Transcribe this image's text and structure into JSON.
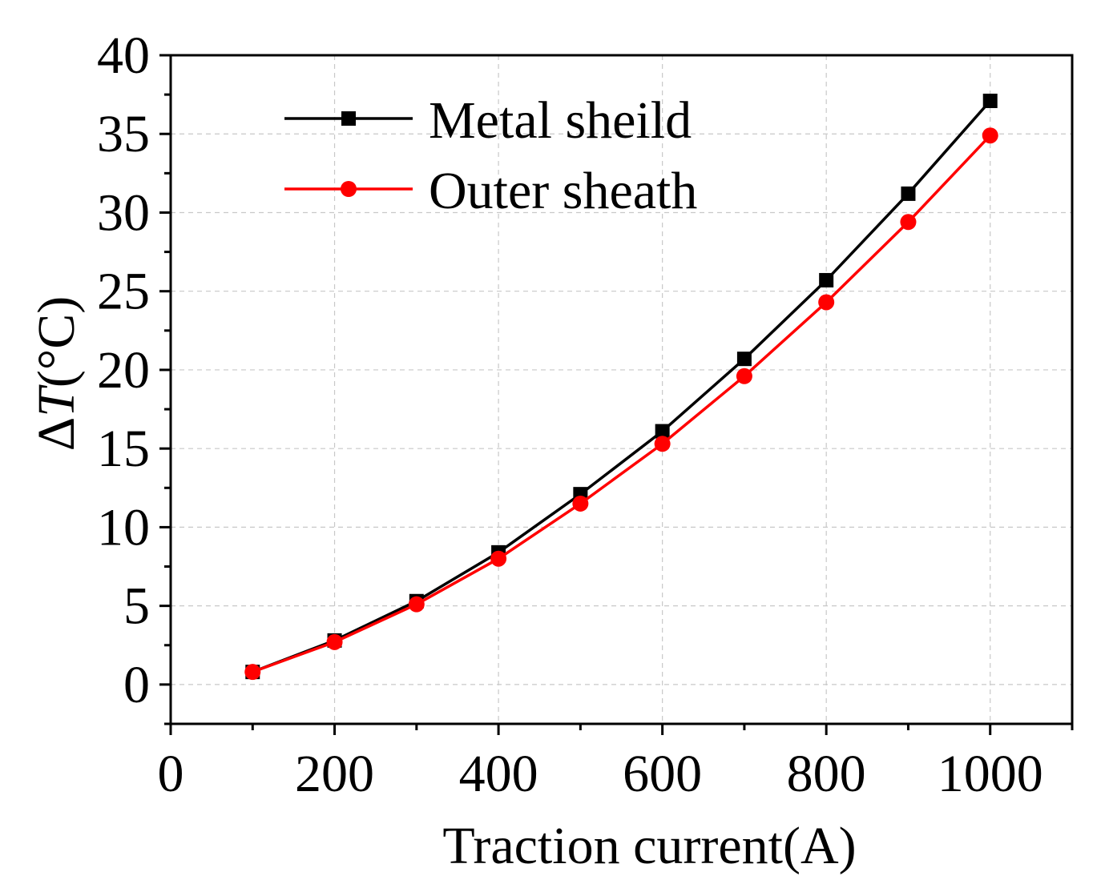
{
  "chart_data": {
    "type": "line",
    "title": "",
    "xlabel": "Traction current(A)",
    "ylabel": "ΔT(°C)",
    "ylabel_parts": {
      "delta": "Δ",
      "var": "T",
      "unit": "(°C)"
    },
    "xlim": [
      0,
      1100
    ],
    "ylim": [
      -2.5,
      40
    ],
    "xticks": [
      0,
      200,
      400,
      600,
      800,
      1000
    ],
    "yticks": [
      0,
      5,
      10,
      15,
      20,
      25,
      30,
      35,
      40
    ],
    "x": [
      100,
      200,
      300,
      400,
      500,
      600,
      700,
      800,
      900,
      1000
    ],
    "grid": true,
    "legend_position": "top-left",
    "series": [
      {
        "name": "Metal sheild",
        "color": "#000000",
        "marker": "square",
        "values": [
          0.8,
          2.8,
          5.3,
          8.4,
          12.1,
          16.1,
          20.7,
          25.7,
          31.2,
          37.1
        ]
      },
      {
        "name": "Outer sheath",
        "color": "#ff0000",
        "marker": "circle",
        "values": [
          0.8,
          2.7,
          5.1,
          8.0,
          11.5,
          15.3,
          19.6,
          24.3,
          29.4,
          34.9
        ]
      }
    ]
  }
}
